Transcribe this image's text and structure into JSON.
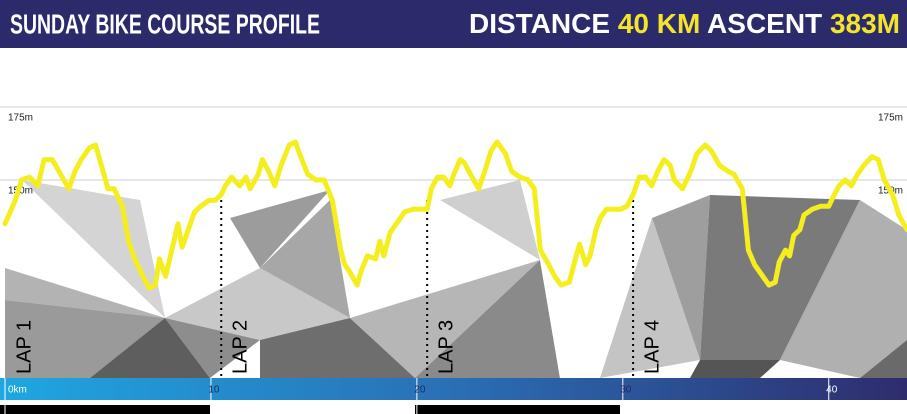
{
  "chart_data": {
    "type": "line",
    "title": "SUNDAY BIKE COURSE PROFILE",
    "distance_label": "DISTANCE",
    "distance": "40 KM",
    "ascent_label": "ASCENT",
    "ascent": "383M",
    "xlim": [
      0,
      43.8
    ],
    "ylim": [
      82.2,
      195.2
    ],
    "xticks": [
      {
        "value": 0,
        "label": "0km"
      },
      10,
      20,
      30,
      40
    ],
    "yticks": [
      {
        "value": 150,
        "label": "150m"
      },
      {
        "value": 175,
        "label": "175m"
      }
    ],
    "grid": true,
    "laps": [
      {
        "label": "LAP 1",
        "x": 0
      },
      {
        "label": "LAP 2",
        "x": 10.5
      },
      {
        "label": "LAP 3",
        "x": 20.5
      },
      {
        "label": "LAP 4",
        "x": 30.5
      }
    ],
    "series": [
      {
        "color": "#f5ee1e",
        "x": [
          0.0,
          0.5,
          0.8,
          1.2,
          1.6,
          1.9,
          2.3,
          2.7,
          3.1,
          3.4,
          3.7,
          4.1,
          4.4,
          4.6,
          5.0,
          5.3,
          5.7,
          6.0,
          6.3,
          6.7,
          7.0,
          7.3,
          7.5,
          7.8,
          8.1,
          8.4,
          8.6,
          8.9,
          9.2,
          9.5,
          9.9,
          10.2,
          10.5,
          10.7,
          11.0,
          11.4,
          11.7,
          11.9,
          12.3,
          12.5,
          12.8,
          13.1,
          13.4,
          13.8,
          14.1,
          14.3,
          14.7,
          15.1,
          15.5,
          15.9,
          16.3,
          16.5,
          16.7,
          17.1,
          17.3,
          17.6,
          18.0,
          18.2,
          18.4,
          18.7,
          19.1,
          19.4,
          19.8,
          20.1,
          20.5,
          20.7,
          21.0,
          21.3,
          21.6,
          21.8,
          22.1,
          22.3,
          22.6,
          23.0,
          23.3,
          23.6,
          23.9,
          24.3,
          24.6,
          25.0,
          25.4,
          25.7,
          26.0,
          26.4,
          26.7,
          27.0,
          27.4,
          27.7,
          27.9,
          28.2,
          28.4,
          28.7,
          28.9,
          29.2,
          29.5,
          29.9,
          30.2,
          30.5,
          30.8,
          31.1,
          31.4,
          31.7,
          32.0,
          32.3,
          32.5,
          32.9,
          33.3,
          33.6,
          34.0,
          34.3,
          34.7,
          35.1,
          35.4,
          35.8,
          36.1,
          36.4,
          36.7,
          37.1,
          37.4,
          37.6,
          37.9,
          38.1,
          38.3,
          38.6,
          38.8,
          39.2,
          39.6,
          40.0,
          40.2,
          40.5,
          40.8,
          41.1,
          41.4,
          41.7,
          42.1,
          42.4,
          42.7,
          43.1,
          43.4,
          43.8
        ],
        "values": [
          135,
          143,
          150,
          151,
          148,
          157,
          157,
          152,
          147,
          153,
          157,
          161,
          162,
          157,
          147,
          147,
          141,
          129,
          123,
          117,
          113,
          114,
          123,
          117,
          126,
          135,
          127,
          133,
          139,
          141,
          143,
          143,
          145,
          148,
          151,
          148,
          151,
          147,
          152,
          157,
          153,
          148,
          155,
          162,
          163,
          159,
          152,
          150,
          150,
          143,
          126,
          121,
          119,
          114,
          119,
          124,
          123,
          129,
          124,
          132,
          136,
          139,
          140,
          140,
          140,
          147,
          151,
          151,
          148,
          152,
          157,
          156,
          152,
          147,
          153,
          160,
          163,
          159,
          153,
          151,
          150,
          147,
          126,
          121,
          117,
          114,
          115,
          123,
          128,
          121,
          124,
          133,
          137,
          140,
          140,
          140,
          141,
          145,
          151,
          151,
          148,
          153,
          157,
          155,
          150,
          147,
          153,
          159,
          162,
          160,
          155,
          153,
          152,
          147,
          126,
          121,
          118,
          114,
          115,
          122,
          126,
          124,
          131,
          133,
          138,
          140,
          141,
          141,
          144,
          148,
          150,
          148,
          152,
          155,
          158,
          157,
          150,
          145,
          138,
          133
        ]
      }
    ]
  }
}
